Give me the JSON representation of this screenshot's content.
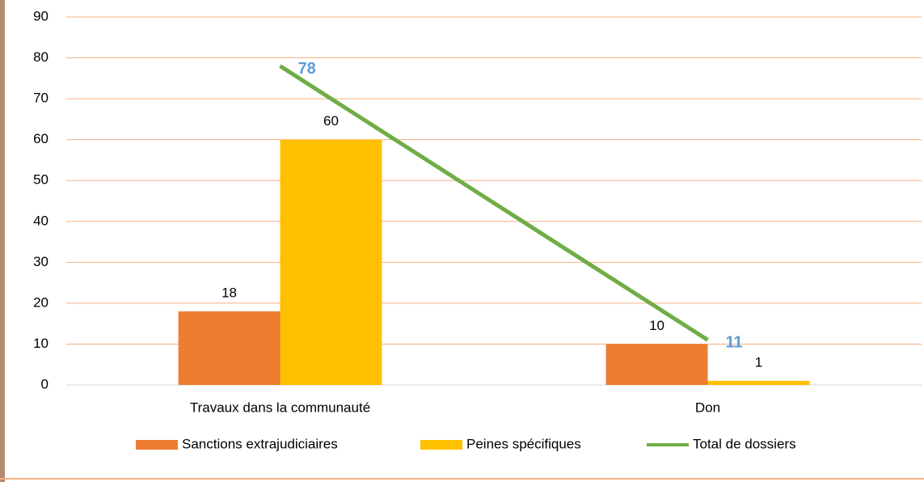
{
  "chart_data": {
    "type": "bar",
    "categories": [
      "Travaux dans la communauté",
      "Don"
    ],
    "series": [
      {
        "name": "Sanctions extrajudiciaires",
        "color": "#ed7d31",
        "values": [
          18,
          10
        ]
      },
      {
        "name": "Peines spécifiques",
        "color": "#ffc000",
        "values": [
          60,
          1
        ]
      },
      {
        "name": "Total de dossiers",
        "color": "#70ad47",
        "type": "line",
        "values": [
          78,
          11
        ]
      }
    ],
    "ylim": [
      0,
      90
    ],
    "yticks": [
      0,
      10,
      20,
      30,
      40,
      50,
      60,
      70,
      80,
      90
    ],
    "grid": true,
    "legend": "bottom"
  }
}
